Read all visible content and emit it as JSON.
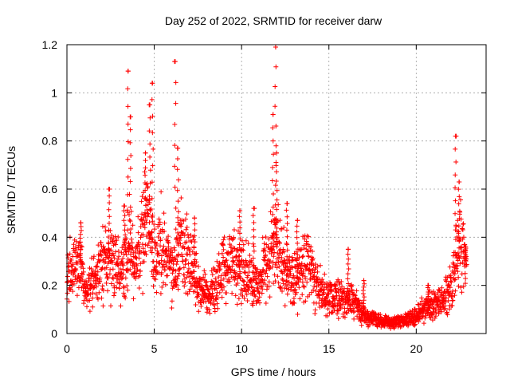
{
  "chart_data": {
    "type": "scatter",
    "title": "Day 252 of 2022, SRMTID for receiver darw",
    "xlabel": "GPS time / hours",
    "ylabel": "SRMTID / TECUs",
    "xlim": [
      0,
      24
    ],
    "ylim": [
      0,
      1.2
    ],
    "x_ticks": [
      0,
      5,
      10,
      15,
      20
    ],
    "x_tick_labels": [
      "0",
      "5",
      "10",
      "15",
      "20"
    ],
    "y_ticks": [
      0,
      0.2,
      0.4,
      0.6,
      0.8,
      1.0,
      1.2
    ],
    "y_tick_labels": [
      "0",
      "0.2",
      "0.4",
      "0.6",
      "0.8",
      "1",
      "1.2"
    ],
    "grid": true,
    "marker": "plus",
    "series": [
      {
        "name": "SRMTID",
        "color": "#ff0000",
        "baseline_profile": [
          [
            0.0,
            0.25
          ],
          [
            0.4,
            0.27
          ],
          [
            0.8,
            0.3
          ],
          [
            1.0,
            0.17
          ],
          [
            1.3,
            0.19
          ],
          [
            1.7,
            0.24
          ],
          [
            2.0,
            0.3
          ],
          [
            2.5,
            0.32
          ],
          [
            3.0,
            0.26
          ],
          [
            3.3,
            0.33
          ],
          [
            3.6,
            0.37
          ],
          [
            3.9,
            0.28
          ],
          [
            4.2,
            0.38
          ],
          [
            4.6,
            0.46
          ],
          [
            5.0,
            0.32
          ],
          [
            5.4,
            0.38
          ],
          [
            5.8,
            0.3
          ],
          [
            6.2,
            0.26
          ],
          [
            6.5,
            0.4
          ],
          [
            7.0,
            0.3
          ],
          [
            7.4,
            0.21
          ],
          [
            8.0,
            0.15
          ],
          [
            8.5,
            0.19
          ],
          [
            9.0,
            0.28
          ],
          [
            9.5,
            0.3
          ],
          [
            10.0,
            0.27
          ],
          [
            10.5,
            0.24
          ],
          [
            11.0,
            0.2
          ],
          [
            11.5,
            0.3
          ],
          [
            11.9,
            0.38
          ],
          [
            12.3,
            0.3
          ],
          [
            12.8,
            0.24
          ],
          [
            13.3,
            0.23
          ],
          [
            13.8,
            0.31
          ],
          [
            14.2,
            0.2
          ],
          [
            14.8,
            0.15
          ],
          [
            15.3,
            0.16
          ],
          [
            15.8,
            0.14
          ],
          [
            16.3,
            0.15
          ],
          [
            16.8,
            0.1
          ],
          [
            17.3,
            0.06
          ],
          [
            18.0,
            0.05
          ],
          [
            18.5,
            0.05
          ],
          [
            19.0,
            0.05
          ],
          [
            19.5,
            0.06
          ],
          [
            20.0,
            0.07
          ],
          [
            20.5,
            0.1
          ],
          [
            21.0,
            0.12
          ],
          [
            21.5,
            0.14
          ],
          [
            22.0,
            0.2
          ],
          [
            22.3,
            0.3
          ],
          [
            22.6,
            0.35
          ],
          [
            22.9,
            0.28
          ]
        ],
        "spikes": [
          [
            0.8,
            0.46
          ],
          [
            2.4,
            0.6
          ],
          [
            3.3,
            0.53
          ],
          [
            3.5,
            1.09
          ],
          [
            3.62,
            0.9
          ],
          [
            4.5,
            0.75
          ],
          [
            4.75,
            0.95
          ],
          [
            4.9,
            1.04
          ],
          [
            6.2,
            1.13
          ],
          [
            6.35,
            0.77
          ],
          [
            7.3,
            0.48
          ],
          [
            9.9,
            0.51
          ],
          [
            10.7,
            0.52
          ],
          [
            11.8,
            0.91
          ],
          [
            11.95,
            1.19
          ],
          [
            12.0,
            0.75
          ],
          [
            12.6,
            0.54
          ],
          [
            13.2,
            0.47
          ],
          [
            16.1,
            0.35
          ],
          [
            17.0,
            0.22
          ],
          [
            20.7,
            0.2
          ],
          [
            22.25,
            0.82
          ],
          [
            22.45,
            0.63
          ],
          [
            22.8,
            0.36
          ]
        ]
      }
    ]
  }
}
